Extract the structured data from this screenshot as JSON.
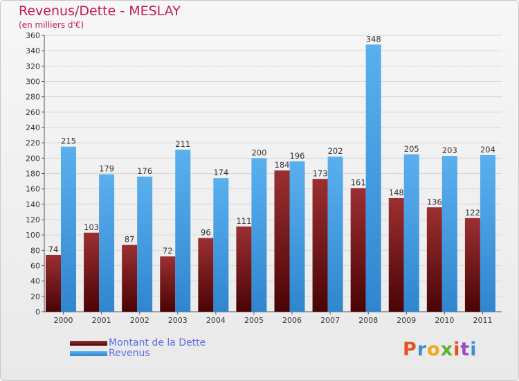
{
  "header": {
    "title": "Revenus/Dette - MESLAY",
    "subtitle": "(en milliers d'€)"
  },
  "brand": {
    "text": "Proxiti",
    "colors": [
      "#e5521f",
      "#3b8fd9",
      "#f2a81c",
      "#5cb531",
      "#e5521f",
      "#9c4fc2",
      "#3b8fd9"
    ]
  },
  "colors": {
    "dette_top": "#9b2f32",
    "dette_bottom": "#4a0405",
    "revenus_top": "#5ab0ee",
    "revenus_bottom": "#2f86cf",
    "grid": "#d7d7d7",
    "axis_text": "#333333",
    "title": "#c2185b",
    "legend_text": "#5b6ee8"
  },
  "chart_data": {
    "type": "bar",
    "categories": [
      "2000",
      "2001",
      "2002",
      "2003",
      "2004",
      "2005",
      "2006",
      "2007",
      "2008",
      "2009",
      "2010",
      "2011"
    ],
    "series": [
      {
        "name": "Montant de la Dette",
        "values": [
          74,
          103,
          87,
          72,
          96,
          111,
          184,
          173,
          161,
          148,
          136,
          122
        ]
      },
      {
        "name": "Revenus",
        "values": [
          215,
          179,
          176,
          211,
          174,
          200,
          196,
          202,
          348,
          205,
          203,
          204
        ]
      }
    ],
    "title": "Revenus/Dette - MESLAY",
    "ylabel": "(en milliers d'€)",
    "ylim": [
      0,
      360
    ],
    "yticks": [
      0,
      20,
      40,
      60,
      80,
      100,
      120,
      140,
      160,
      180,
      200,
      220,
      240,
      260,
      280,
      300,
      320,
      340,
      360
    ],
    "grid": true,
    "legend": "bottom-left"
  }
}
